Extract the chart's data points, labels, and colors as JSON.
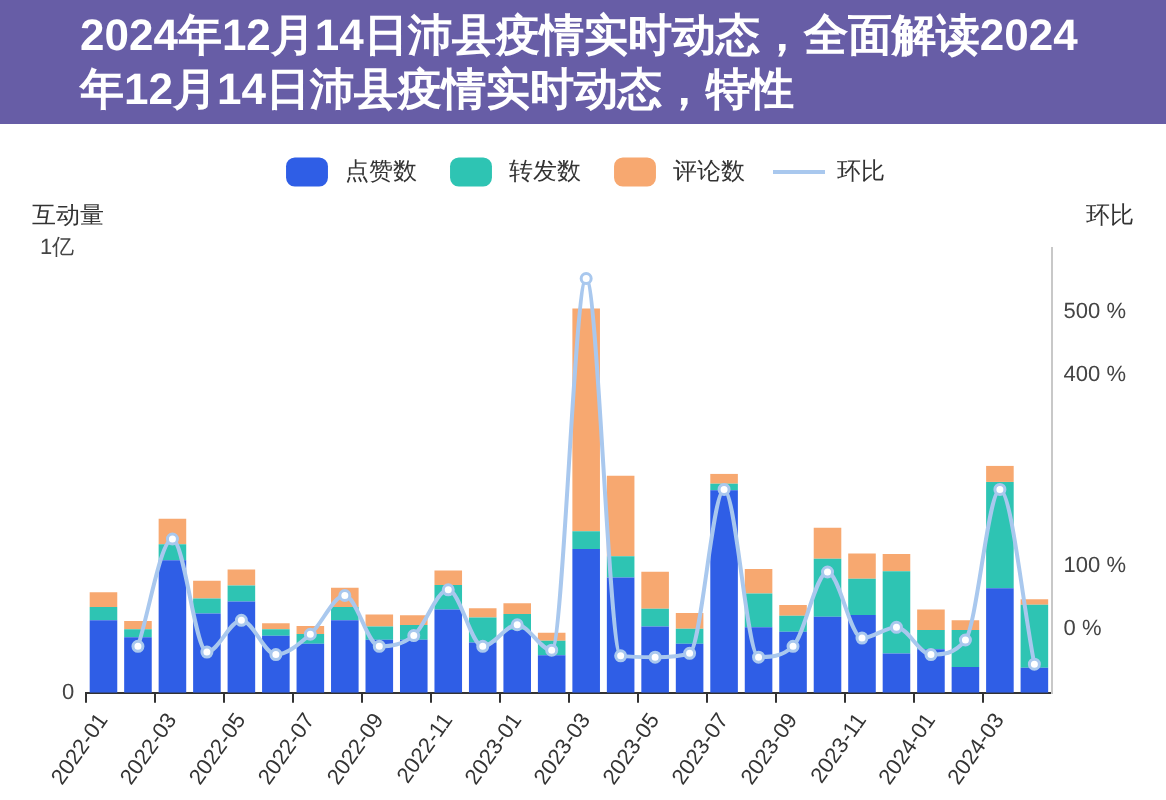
{
  "chart_data": {
    "type": "bar",
    "title": "2024年12月14日沛县疫情实时动态，全面解读2024年12月14日沛县疫情实时动态，特性",
    "ylabel": "互动量",
    "y2label": "环比",
    "categories": [
      "2022-01",
      null,
      "2022-03",
      null,
      "2022-05",
      null,
      "2022-07",
      null,
      "2022-09",
      null,
      "2022-11",
      null,
      "2023-01",
      null,
      "2023-03",
      null,
      "2023-05",
      null,
      "2023-07",
      null,
      "2023-09",
      null,
      "2023-11",
      null,
      "2024-01",
      null,
      "2024-03",
      null
    ],
    "stacked": true,
    "series": [
      {
        "name": "点赞数",
        "color": "#2f5ee6",
        "values": [
          0.163,
          0.125,
          0.298,
          0.178,
          0.205,
          0.128,
          0.11,
          0.163,
          0.119,
          0.119,
          0.187,
          0.113,
          0.141,
          0.084,
          0.323,
          0.259,
          0.149,
          0.11,
          0.455,
          0.147,
          0.137,
          0.171,
          0.175,
          0.088,
          0.098,
          0.058,
          0.235,
          0.056
        ]
      },
      {
        "name": "转发数",
        "color": "#2ec4b3",
        "values": [
          0.03,
          0.018,
          0.036,
          0.034,
          0.036,
          0.015,
          0.022,
          0.03,
          0.03,
          0.033,
          0.055,
          0.056,
          0.036,
          0.033,
          0.04,
          0.048,
          0.04,
          0.034,
          0.015,
          0.076,
          0.036,
          0.13,
          0.081,
          0.185,
          0.043,
          0.083,
          0.239,
          0.142
        ]
      },
      {
        "name": "评论数",
        "color": "#f7a870",
        "values": [
          0.033,
          0.018,
          0.057,
          0.04,
          0.036,
          0.013,
          0.018,
          0.043,
          0.027,
          0.022,
          0.033,
          0.021,
          0.024,
          0.018,
          0.501,
          0.181,
          0.083,
          0.035,
          0.022,
          0.055,
          0.024,
          0.07,
          0.057,
          0.039,
          0.046,
          0.022,
          0.036,
          0.012
        ]
      },
      {
        "name": "环比",
        "type": "line",
        "axis": "y2",
        "color": "#a9c8ee",
        "values": [
          null,
          -27,
          142,
          -36,
          14,
          -40,
          -8,
          53,
          -27,
          -10,
          62,
          -27,
          7,
          -33,
          552,
          -42,
          -44,
          -38,
          220,
          -44,
          -27,
          90,
          -14,
          3,
          -40,
          -17,
          220,
          -55
        ]
      }
    ],
    "ylim": [
      0,
      1
    ],
    "yticks": [
      0,
      {
        "value": 1,
        "label": "1亿"
      }
    ],
    "y2lim": [
      -100,
      600
    ],
    "y2ticks": [
      {
        "value": 0,
        "label": "0 %"
      },
      {
        "value": 100,
        "label": "100 %"
      },
      {
        "value": 400,
        "label": "400 %"
      },
      {
        "value": 500,
        "label": "500 %"
      }
    ],
    "legend": "top",
    "grid": false,
    "marker": "circle",
    "line_style": "solid"
  }
}
